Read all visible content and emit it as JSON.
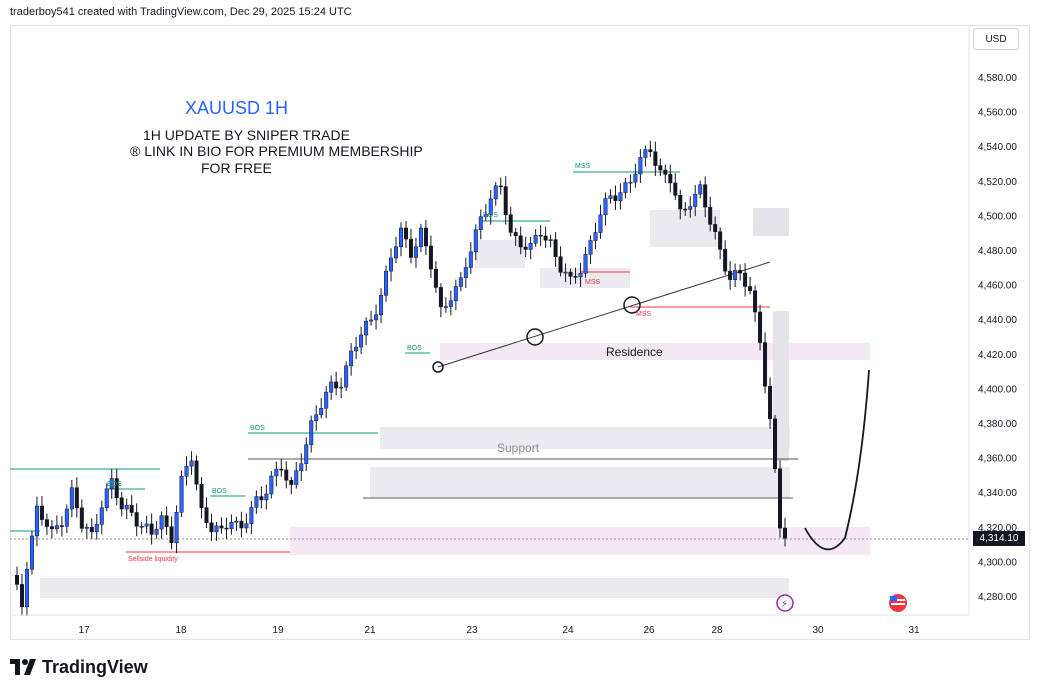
{
  "header": {
    "text": "traderboy541 created with TradingView.com, Dec 29, 2025 15:24 UTC"
  },
  "currency": "USD",
  "annotations": {
    "title": "XAUUSD 1H",
    "line1": "1H UPDATE BY SNIPER TRADE",
    "line2": "® LINK IN BIO FOR PREMIUM MEMBERSHIP",
    "line3": "FOR FREE",
    "residence": "Residence",
    "support": "Support",
    "sellside": "Sellside liquidity",
    "bos": "BOS",
    "mss": "MSS"
  },
  "price_axis": {
    "ticks": [
      "4,580.00",
      "4,560.00",
      "4,540.00",
      "4,520.00",
      "4,500.00",
      "4,480.00",
      "4,460.00",
      "4,440.00",
      "4,420.00",
      "4,400.00",
      "4,380.00",
      "4,360.00",
      "4,340.00",
      "4,320.00",
      "4,300.00",
      "4,280.00"
    ],
    "current_price": "4,314.10"
  },
  "time_axis": {
    "ticks": [
      "17",
      "18",
      "19",
      "21",
      "23",
      "24",
      "26",
      "28",
      "30",
      "31"
    ]
  },
  "brand": "TradingView",
  "colors": {
    "up": "#2962ff",
    "down": "#131722",
    "bos": "#089981",
    "mss": "#f23645",
    "title": "#2962ff"
  },
  "chart_data": {
    "type": "candlestick",
    "symbol": "XAUUSD",
    "timeframe": "1H",
    "ylim": [
      4270,
      4590
    ],
    "path": [
      [
        0,
        4290
      ],
      [
        2,
        4275
      ],
      [
        3,
        4300
      ],
      [
        5,
        4330
      ],
      [
        8,
        4315
      ],
      [
        10,
        4325
      ],
      [
        12,
        4340
      ],
      [
        14,
        4320
      ],
      [
        16,
        4315
      ],
      [
        18,
        4335
      ],
      [
        20,
        4345
      ],
      [
        22,
        4330
      ],
      [
        24,
        4330
      ],
      [
        26,
        4320
      ],
      [
        28,
        4315
      ],
      [
        30,
        4325
      ],
      [
        32,
        4315
      ],
      [
        34,
        4345
      ],
      [
        36,
        4360
      ],
      [
        38,
        4330
      ],
      [
        40,
        4320
      ],
      [
        42,
        4315
      ],
      [
        44,
        4325
      ],
      [
        46,
        4320
      ],
      [
        48,
        4330
      ],
      [
        50,
        4335
      ],
      [
        52,
        4350
      ],
      [
        54,
        4355
      ],
      [
        56,
        4340
      ],
      [
        58,
        4360
      ],
      [
        60,
        4380
      ],
      [
        62,
        4390
      ],
      [
        64,
        4400
      ],
      [
        66,
        4405
      ],
      [
        68,
        4420
      ],
      [
        70,
        4430
      ],
      [
        72,
        4440
      ],
      [
        74,
        4455
      ],
      [
        76,
        4475
      ],
      [
        78,
        4490
      ],
      [
        80,
        4480
      ],
      [
        82,
        4490
      ],
      [
        84,
        4470
      ],
      [
        86,
        4445
      ],
      [
        88,
        4455
      ],
      [
        90,
        4460
      ],
      [
        92,
        4480
      ],
      [
        94,
        4500
      ],
      [
        96,
        4510
      ],
      [
        98,
        4515
      ],
      [
        100,
        4490
      ],
      [
        102,
        4485
      ],
      [
        104,
        4480
      ],
      [
        106,
        4490
      ],
      [
        108,
        4485
      ],
      [
        110,
        4470
      ],
      [
        112,
        4460
      ],
      [
        114,
        4470
      ],
      [
        116,
        4485
      ],
      [
        118,
        4500
      ],
      [
        120,
        4510
      ],
      [
        122,
        4515
      ],
      [
        124,
        4520
      ],
      [
        126,
        4530
      ],
      [
        128,
        4540
      ],
      [
        130,
        4525
      ],
      [
        132,
        4520
      ],
      [
        134,
        4500
      ],
      [
        136,
        4510
      ],
      [
        138,
        4515
      ],
      [
        140,
        4495
      ],
      [
        142,
        4480
      ],
      [
        144,
        4465
      ],
      [
        146,
        4465
      ],
      [
        148,
        4455
      ],
      [
        150,
        4430
      ],
      [
        152,
        4380
      ],
      [
        154,
        4320
      ],
      [
        155,
        4314
      ]
    ]
  }
}
